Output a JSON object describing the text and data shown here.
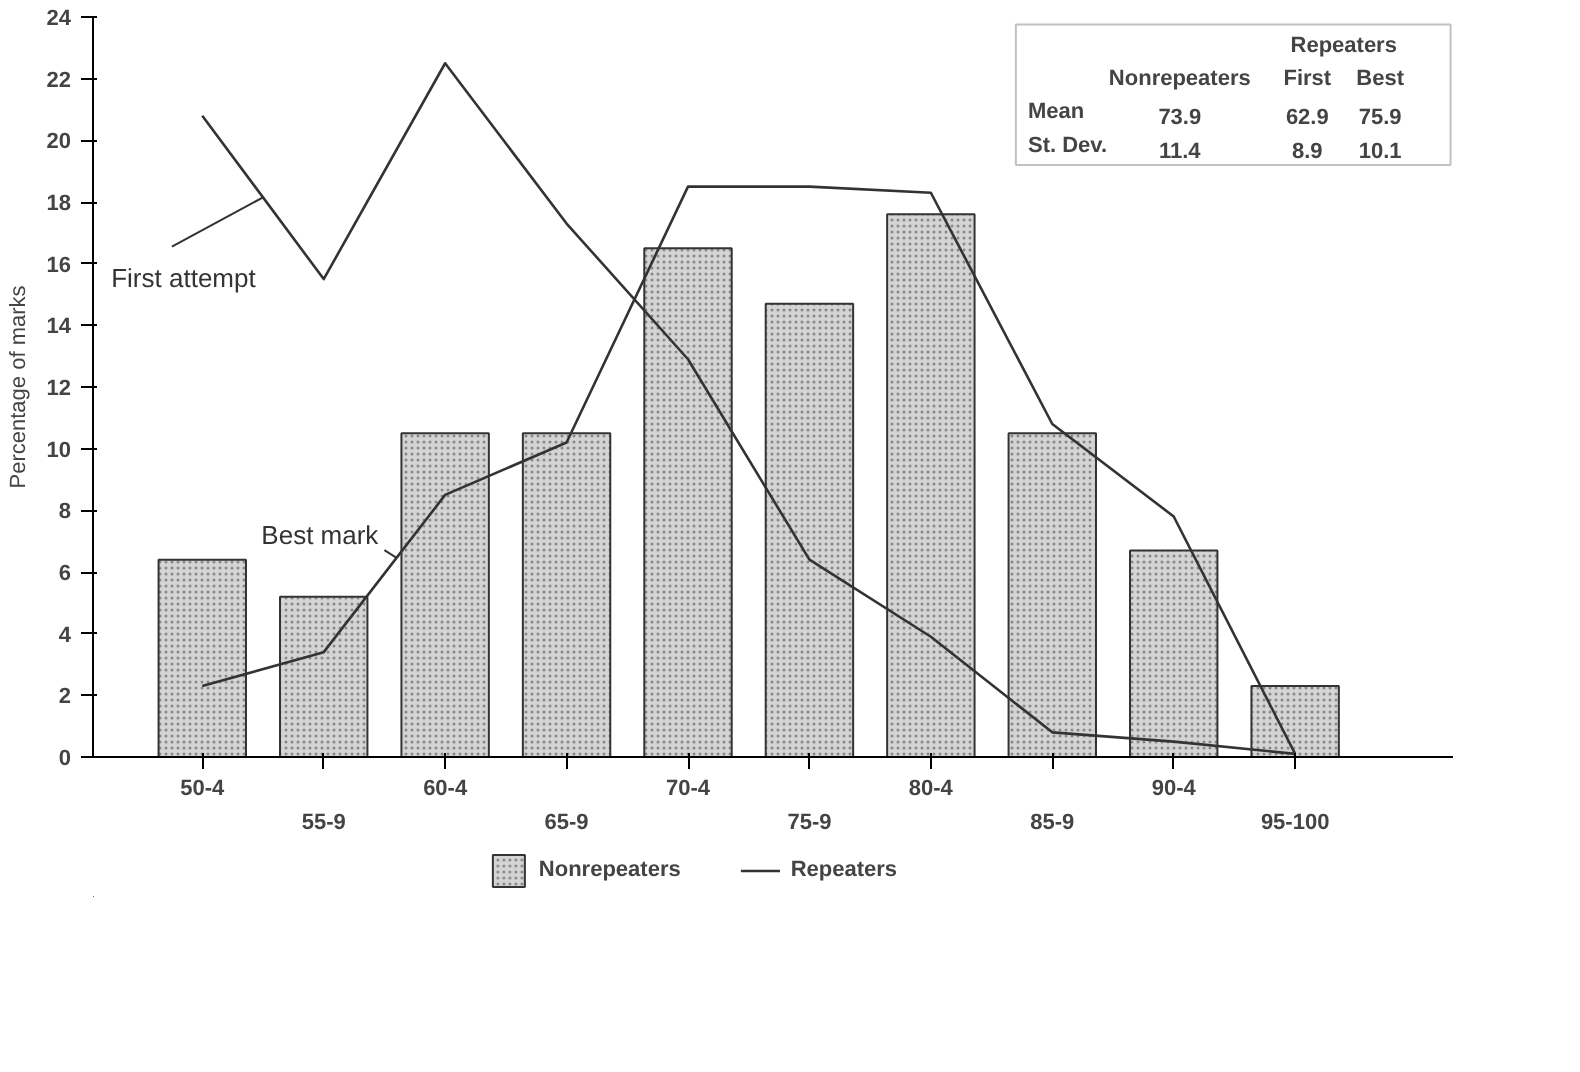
{
  "chart_data": {
    "type": "bar",
    "ylabel": "Percentage of marks",
    "categories": [
      "50-4",
      "55-9",
      "60-4",
      "65-9",
      "70-4",
      "75-9",
      "80-4",
      "85-9",
      "90-4",
      "95-100"
    ],
    "series": [
      {
        "name": "Nonrepeaters",
        "color": "#d4d4d4",
        "values": [
          6.4,
          5.2,
          10.5,
          10.5,
          16.5,
          14.7,
          17.6,
          10.5,
          6.7,
          2.3
        ]
      },
      {
        "name": "First attempt",
        "type": "line",
        "color": "#333333",
        "values": [
          20.8,
          15.5,
          22.5,
          17.3,
          12.9,
          6.4,
          3.9,
          0.8,
          0.5,
          0.1
        ]
      },
      {
        "name": "Best mark",
        "type": "line",
        "color": "#333333",
        "values": [
          2.3,
          3.4,
          8.5,
          10.2,
          18.5,
          18.5,
          18.3,
          10.8,
          7.8,
          0.1
        ]
      }
    ],
    "ylim": [
      0,
      24
    ],
    "yticks": [
      0,
      2,
      4,
      6,
      8,
      10,
      12,
      14,
      16,
      18,
      20,
      22,
      24
    ],
    "legend": "bottom",
    "grid": false,
    "marker": "none",
    "line_style": "solid",
    "annotations": [
      "Repeaters",
      "Repeaters",
      "Nonrepeaters",
      "First",
      "Best",
      "Mean",
      "73.9",
      "62.9",
      "75.9",
      "St. Dev.",
      "11.4",
      "8.9",
      "10.1"
    ]
  }
}
